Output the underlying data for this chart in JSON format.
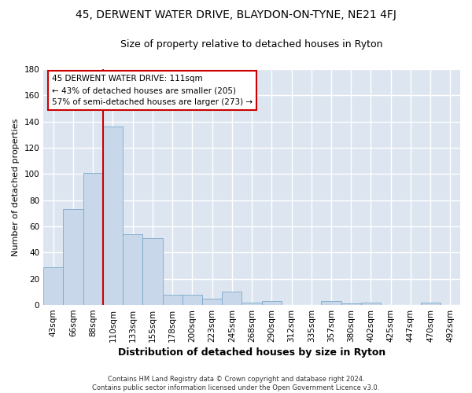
{
  "title": "45, DERWENT WATER DRIVE, BLAYDON-ON-TYNE, NE21 4FJ",
  "subtitle": "Size of property relative to detached houses in Ryton",
  "xlabel": "Distribution of detached houses by size in Ryton",
  "ylabel": "Number of detached properties",
  "footer_line1": "Contains HM Land Registry data © Crown copyright and database right 2024.",
  "footer_line2": "Contains public sector information licensed under the Open Government Licence v3.0.",
  "bar_labels": [
    "43sqm",
    "66sqm",
    "88sqm",
    "110sqm",
    "133sqm",
    "155sqm",
    "178sqm",
    "200sqm",
    "223sqm",
    "245sqm",
    "268sqm",
    "290sqm",
    "312sqm",
    "335sqm",
    "357sqm",
    "380sqm",
    "402sqm",
    "425sqm",
    "447sqm",
    "470sqm",
    "492sqm"
  ],
  "bar_values": [
    29,
    73,
    101,
    136,
    54,
    51,
    8,
    8,
    5,
    10,
    2,
    3,
    0,
    0,
    3,
    1,
    2,
    0,
    0,
    2,
    0
  ],
  "bar_color": "#c8d8ea",
  "bar_edge_color": "#7aaacb",
  "ylim": [
    0,
    180
  ],
  "yticks": [
    0,
    20,
    40,
    60,
    80,
    100,
    120,
    140,
    160,
    180
  ],
  "vline_x": 3,
  "vline_color": "#cc0000",
  "annotation_title": "45 DERWENT WATER DRIVE: 111sqm",
  "annotation_line1": "← 43% of detached houses are smaller (205)",
  "annotation_line2": "57% of semi-detached houses are larger (273) →",
  "annotation_box_facecolor": "#ffffff",
  "annotation_box_edgecolor": "#cc0000",
  "plot_bg_color": "#dde6f0",
  "fig_bg_color": "#ffffff",
  "grid_color": "#ffffff",
  "title_fontsize": 10,
  "subtitle_fontsize": 9,
  "xlabel_fontsize": 9,
  "ylabel_fontsize": 8,
  "tick_fontsize": 7.5,
  "footer_fontsize": 6
}
